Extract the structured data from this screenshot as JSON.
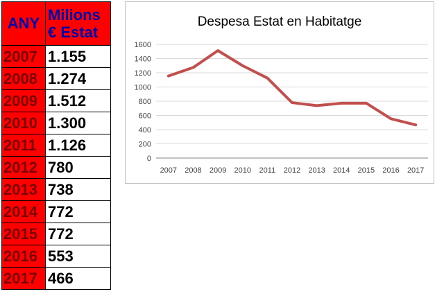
{
  "table": {
    "header_year": "ANY",
    "header_value": [
      "Milions",
      "€ Estat"
    ],
    "rows": [
      {
        "year": "2007",
        "value": "1.155"
      },
      {
        "year": "2008",
        "value": "1.274"
      },
      {
        "year": "2009",
        "value": "1.512"
      },
      {
        "year": "2010",
        "value": "1.300"
      },
      {
        "year": "2011",
        "value": "1.126"
      },
      {
        "year": "2012",
        "value": "780"
      },
      {
        "year": "2013",
        "value": "738"
      },
      {
        "year": "2014",
        "value": "772"
      },
      {
        "year": "2015",
        "value": "772"
      },
      {
        "year": "2016",
        "value": "553"
      },
      {
        "year": "2017",
        "value": "466"
      }
    ],
    "colors": {
      "header_bg": "#ff0000",
      "header_text": "#0000aa",
      "year_text": "#7a0000"
    }
  },
  "chart_data": {
    "type": "line",
    "title": "Despesa Estat en Habitatge",
    "xlabel": "",
    "ylabel": "",
    "categories": [
      "2007",
      "2008",
      "2009",
      "2010",
      "2011",
      "2012",
      "2013",
      "2014",
      "2015",
      "2016",
      "2017"
    ],
    "series": [
      {
        "values": [
          1155,
          1274,
          1512,
          1300,
          1126,
          780,
          738,
          772,
          772,
          553,
          466
        ],
        "color": "#c0504d"
      }
    ],
    "ylim": [
      0,
      1600
    ],
    "yticks": [
      0,
      200,
      400,
      600,
      800,
      1000,
      1200,
      1400,
      1600
    ],
    "grid": true,
    "legend": "none"
  }
}
